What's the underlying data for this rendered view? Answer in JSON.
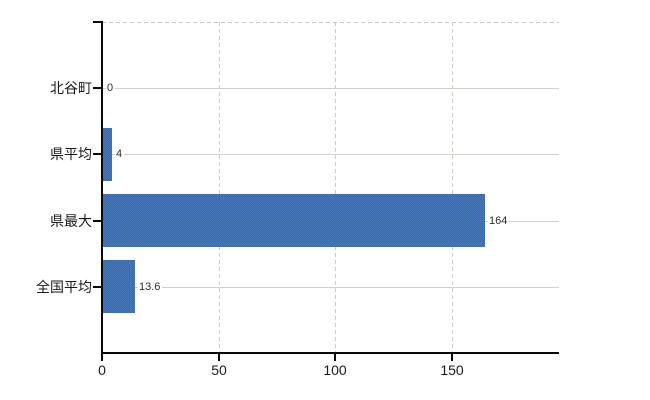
{
  "figure": {
    "background": "#ffffff"
  },
  "chart_data": {
    "type": "bar",
    "orientation": "horizontal",
    "categories": [
      "北谷町",
      "県平均",
      "県最大",
      "全国平均"
    ],
    "values": [
      0,
      4,
      164,
      13.6
    ],
    "value_labels": [
      "0",
      "4",
      "164",
      "13.6"
    ],
    "x_ticks": [
      0,
      50,
      100,
      150
    ],
    "x_tick_labels": [
      "0",
      "50",
      "100",
      "150"
    ],
    "xlim": [
      0,
      196
    ],
    "grid": {
      "horizontal_lines": "solid, one per category center",
      "vertical_lines": "dashed, at value ticks 50/100/150",
      "top_border": "dashed"
    },
    "legend": "none",
    "colors": {
      "bar_dither_light": "#4a79ba",
      "bar_dither_dark": "#3b68a3",
      "gridline_horizontal": "#ccd4ca",
      "gridline_vertical_dashed": "#c8cdc8",
      "top_border_dashed": "#c6c6c6",
      "axis": "#0a0a0a",
      "tick_label_text": "#1a1a1a",
      "value_label_text": "#2b2b2b"
    }
  }
}
